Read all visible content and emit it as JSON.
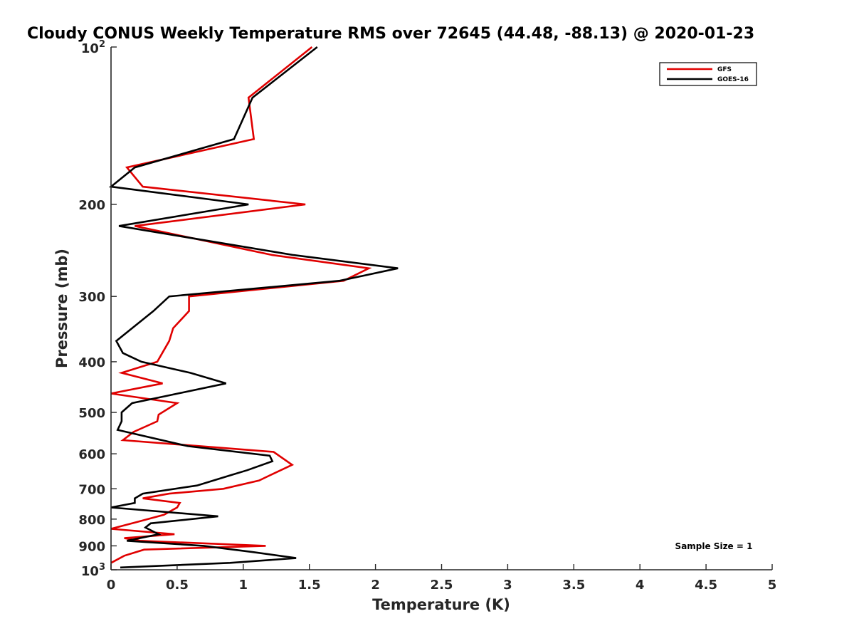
{
  "chart_data": {
    "type": "line",
    "title": "Cloudy CONUS Weekly Temperature RMS over 72645 (44.48, -88.13) @ 2020-01-23",
    "xlabel": "Temperature (K)",
    "ylabel": "Pressure (mb)",
    "xlim": [
      0,
      5
    ],
    "ylim": [
      100,
      1000
    ],
    "yscale": "log",
    "y_reversed": true,
    "x_ticks": [
      "0",
      "0.5",
      "1",
      "1.5",
      "2",
      "2.5",
      "3",
      "3.5",
      "4",
      "4.5",
      "5"
    ],
    "y_ticks": [
      {
        "value": 100,
        "base": "10",
        "exp": "2"
      },
      {
        "value": 200,
        "label": "200"
      },
      {
        "value": 300,
        "label": "300"
      },
      {
        "value": 400,
        "label": "400"
      },
      {
        "value": 500,
        "label": "500"
      },
      {
        "value": 600,
        "label": "600"
      },
      {
        "value": 700,
        "label": "700"
      },
      {
        "value": 800,
        "label": "800"
      },
      {
        "value": 900,
        "label": "900"
      },
      {
        "value": 1000,
        "base": "10",
        "exp": "3"
      }
    ],
    "legend_position": "top-right",
    "annotation": "Sample Size = 1",
    "series": [
      {
        "name": "GFS",
        "color": "#e00000",
        "points": [
          [
            1.52,
            100
          ],
          [
            1.04,
            125
          ],
          [
            1.08,
            150
          ],
          [
            0.12,
            170
          ],
          [
            0.24,
            185
          ],
          [
            1.47,
            200
          ],
          [
            0.18,
            220
          ],
          [
            1.22,
            250
          ],
          [
            1.95,
            265
          ],
          [
            1.76,
            280
          ],
          [
            0.59,
            300
          ],
          [
            0.59,
            320
          ],
          [
            0.47,
            345
          ],
          [
            0.44,
            365
          ],
          [
            0.35,
            400
          ],
          [
            0.08,
            420
          ],
          [
            0.39,
            440
          ],
          [
            0.0,
            460
          ],
          [
            0.5,
            480
          ],
          [
            0.36,
            505
          ],
          [
            0.35,
            520
          ],
          [
            0.17,
            545
          ],
          [
            0.09,
            565
          ],
          [
            1.23,
            595
          ],
          [
            1.37,
            630
          ],
          [
            1.2,
            660
          ],
          [
            1.12,
            675
          ],
          [
            0.85,
            700
          ],
          [
            0.44,
            715
          ],
          [
            0.24,
            730
          ],
          [
            0.52,
            745
          ],
          [
            0.5,
            760
          ],
          [
            0.4,
            785
          ],
          [
            0.2,
            810
          ],
          [
            0.0,
            835
          ],
          [
            0.48,
            855
          ],
          [
            0.1,
            870
          ],
          [
            0.22,
            880
          ],
          [
            1.17,
            900
          ],
          [
            0.25,
            915
          ],
          [
            0.1,
            940
          ],
          [
            0.0,
            970
          ]
        ]
      },
      {
        "name": "GOES-16",
        "color": "#000000",
        "points": [
          [
            1.56,
            100
          ],
          [
            1.07,
            125
          ],
          [
            0.93,
            150
          ],
          [
            0.18,
            170
          ],
          [
            0.0,
            185
          ],
          [
            1.04,
            200
          ],
          [
            0.06,
            220
          ],
          [
            1.38,
            250
          ],
          [
            2.17,
            265
          ],
          [
            1.73,
            280
          ],
          [
            0.44,
            300
          ],
          [
            0.32,
            320
          ],
          [
            0.16,
            345
          ],
          [
            0.04,
            365
          ],
          [
            0.09,
            385
          ],
          [
            0.23,
            400
          ],
          [
            0.6,
            420
          ],
          [
            0.87,
            440
          ],
          [
            0.42,
            465
          ],
          [
            0.16,
            480
          ],
          [
            0.08,
            500
          ],
          [
            0.08,
            520
          ],
          [
            0.05,
            540
          ],
          [
            0.58,
            580
          ],
          [
            1.2,
            605
          ],
          [
            1.22,
            620
          ],
          [
            1.03,
            645
          ],
          [
            0.9,
            660
          ],
          [
            0.65,
            690
          ],
          [
            0.24,
            715
          ],
          [
            0.18,
            730
          ],
          [
            0.18,
            745
          ],
          [
            0.0,
            760
          ],
          [
            0.81,
            790
          ],
          [
            0.3,
            815
          ],
          [
            0.26,
            830
          ],
          [
            0.36,
            855
          ],
          [
            0.12,
            880
          ],
          [
            0.7,
            900
          ],
          [
            1.07,
            925
          ],
          [
            1.4,
            950
          ],
          [
            0.9,
            970
          ],
          [
            0.07,
            990
          ]
        ]
      }
    ]
  }
}
